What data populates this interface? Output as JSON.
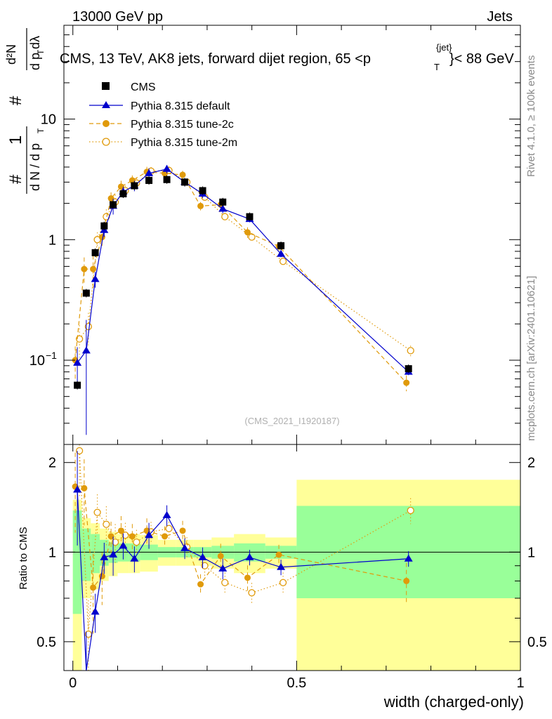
{
  "header": {
    "left": "13000 GeV pp",
    "right": "Jets",
    "title_main": "CMS, 13 TeV, AK8 jets, forward dijet region, 65 <p",
    "title_sup": "{jet}",
    "title_sub": "T",
    "title_end": "}< 88 GeV",
    "watermark": "(CMS_2021_I1920187)",
    "side_top": "Rivet 4.1.0, ≥ 100k events",
    "side_bottom": "mcplots.cern.ch [arXiv:2401.10621]"
  },
  "ylabel": {
    "hash1": "#",
    "one": "1",
    "dN": "d N / d p",
    "T1": "T",
    "hash2": "#",
    "d2N": "d²N",
    "dpT": "d p",
    "T2": "T",
    "dlambda": "dλ"
  },
  "colors": {
    "cms": "#000000",
    "default": "#0000cc",
    "tune2c": "#e09a0a",
    "tune2m": "#e09a0a",
    "band_green": "#99ff99",
    "band_yellow": "#ffff99"
  },
  "chart_data": {
    "type": "line",
    "xlabel": "width (charged-only)",
    "ratio_ylabel": "Ratio to CMS",
    "xlim": [
      -0.02,
      1.0
    ],
    "ylim_main": [
      0.02,
      60
    ],
    "ylim_ratio": [
      0.4,
      2.3
    ],
    "x_ticks": [
      {
        "v": 0,
        "label": "0"
      },
      {
        "v": 0.5,
        "label": "0.5"
      },
      {
        "v": 1,
        "label": "1"
      }
    ],
    "y_ticks_main": [
      {
        "v": 0.1,
        "label": "10",
        "sup": "−1"
      },
      {
        "v": 1,
        "label": "1",
        "sup": ""
      },
      {
        "v": 10,
        "label": "10",
        "sup": ""
      }
    ],
    "y_ticks_ratio": [
      {
        "v": 0.5,
        "label": "0.5"
      },
      {
        "v": 1,
        "label": "1"
      },
      {
        "v": 2,
        "label": "2"
      }
    ],
    "bins": [
      0,
      0.02,
      0.04,
      0.06,
      0.08,
      0.1,
      0.125,
      0.15,
      0.19,
      0.23,
      0.27,
      0.31,
      0.36,
      0.43,
      0.5,
      1.0
    ],
    "x": [
      0.01,
      0.03,
      0.05,
      0.07,
      0.09,
      0.1125,
      0.1375,
      0.17,
      0.21,
      0.25,
      0.29,
      0.335,
      0.395,
      0.465,
      0.75
    ],
    "band_green": [
      [
        0.62,
        1.38
      ],
      [
        0.8,
        1.2
      ],
      [
        0.85,
        1.15
      ],
      [
        0.9,
        1.1
      ],
      [
        0.92,
        1.08
      ],
      [
        0.93,
        1.07
      ],
      [
        0.93,
        1.07
      ],
      [
        0.94,
        1.06
      ],
      [
        0.96,
        1.04
      ],
      [
        0.96,
        1.04
      ],
      [
        0.96,
        1.04
      ],
      [
        0.95,
        1.05
      ],
      [
        0.93,
        1.07
      ],
      [
        0.95,
        1.05
      ],
      [
        0.7,
        1.43
      ]
    ],
    "band_yellow": [
      [
        0.35,
        1.5
      ],
      [
        0.7,
        1.3
      ],
      [
        0.75,
        1.25
      ],
      [
        0.8,
        1.2
      ],
      [
        0.83,
        1.17
      ],
      [
        0.85,
        1.15
      ],
      [
        0.85,
        1.15
      ],
      [
        0.86,
        1.14
      ],
      [
        0.9,
        1.1
      ],
      [
        0.9,
        1.1
      ],
      [
        0.9,
        1.1
      ],
      [
        0.88,
        1.12
      ],
      [
        0.85,
        1.15
      ],
      [
        0.88,
        1.12
      ],
      [
        0.3,
        1.75
      ]
    ],
    "series": [
      {
        "name": "CMS",
        "style": "data",
        "values": [
          0.062,
          0.36,
          0.78,
          1.3,
          1.95,
          2.4,
          2.8,
          3.1,
          3.15,
          3.0,
          2.55,
          2.05,
          1.55,
          0.89,
          0.085
        ]
      },
      {
        "name": "Pythia 8.315 default",
        "style": "default",
        "values": [
          0.095,
          0.12,
          0.47,
          1.2,
          1.9,
          2.5,
          2.8,
          3.55,
          3.85,
          3.0,
          2.4,
          1.8,
          1.48,
          0.76,
          0.08
        ],
        "err": [
          0.35,
          0.8,
          0.15,
          0.12,
          0.15,
          0.1,
          0.1,
          0.1,
          0.08,
          0.08,
          0.08,
          0.08,
          0.06,
          0.06,
          0.06
        ],
        "ratio": [
          1.62,
          0.3,
          0.63,
          0.96,
          0.98,
          1.05,
          0.95,
          1.14,
          1.33,
          1.03,
          0.96,
          0.88,
          0.96,
          0.89,
          0.95
        ]
      },
      {
        "name": "Pythia 8.315 tune-2c",
        "style": "tune2c",
        "values": [
          0.1,
          0.57,
          0.57,
          1.05,
          2.2,
          2.75,
          3.1,
          3.65,
          3.55,
          3.45,
          1.9,
          1.95,
          1.15,
          0.88,
          0.065
        ],
        "err": [
          0.3,
          0.25,
          0.3,
          0.2,
          0.12,
          0.12,
          0.1,
          0.1,
          0.08,
          0.08,
          0.08,
          0.1,
          0.1,
          0.08,
          0.15
        ],
        "ratio": [
          1.66,
          1.64,
          0.76,
          0.83,
          1.13,
          1.18,
          1.13,
          1.18,
          1.13,
          1.18,
          0.78,
          0.97,
          0.82,
          0.98,
          0.8
        ]
      },
      {
        "name": "Pythia 8.315 tune-2m",
        "style": "tune2m",
        "values": [
          0.15,
          0.19,
          1.0,
          1.55,
          2.05,
          2.55,
          2.95,
          3.7,
          3.75,
          3.0,
          2.25,
          1.55,
          1.05,
          0.66,
          0.12
        ],
        "err": [
          0.3,
          0.3,
          0.15,
          0.15,
          0.15,
          0.1,
          0.1,
          0.08,
          0.08,
          0.08,
          0.08,
          0.08,
          0.08,
          0.08,
          0.1
        ],
        "ratio": [
          2.19,
          0.53,
          1.36,
          1.24,
          1.08,
          1.14,
          1.08,
          1.17,
          1.2,
          1.04,
          0.9,
          0.79,
          0.73,
          0.79,
          1.38
        ]
      }
    ]
  }
}
